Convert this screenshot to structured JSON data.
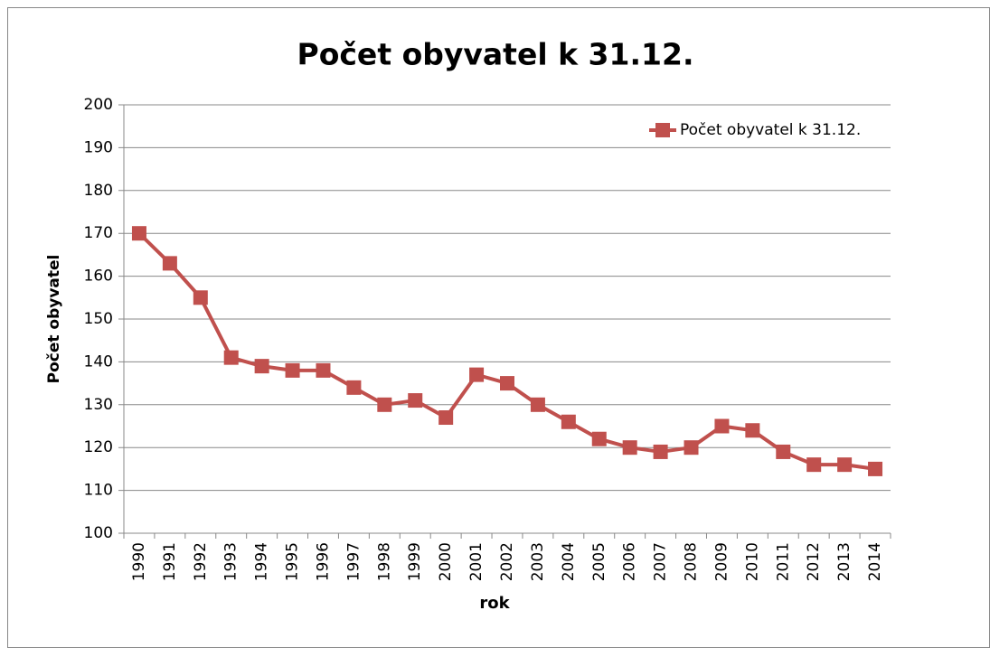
{
  "chart_data": {
    "type": "line",
    "title": "Počet obyvatel k 31.12.",
    "x_label": "rok",
    "y_label": "Počet obyvatel",
    "categories": [
      "1990",
      "1991",
      "1992",
      "1993",
      "1994",
      "1995",
      "1996",
      "1997",
      "1998",
      "1999",
      "2000",
      "2001",
      "2002",
      "2003",
      "2004",
      "2005",
      "2006",
      "2007",
      "2008",
      "2009",
      "2010",
      "2011",
      "2012",
      "2013",
      "2014"
    ],
    "series": [
      {
        "name": "Počet obyvatel k 31.12.",
        "color": "#c0504d",
        "values": [
          170,
          163,
          155,
          141,
          139,
          138,
          138,
          134,
          130,
          131,
          127,
          137,
          135,
          130,
          126,
          122,
          120,
          119,
          120,
          125,
          124,
          119,
          116,
          116,
          115
        ]
      }
    ],
    "ylim": [
      100,
      200
    ],
    "yticks": [
      100,
      110,
      120,
      130,
      140,
      150,
      160,
      170,
      180,
      190,
      200
    ],
    "grid": true,
    "legend": "top-right"
  }
}
